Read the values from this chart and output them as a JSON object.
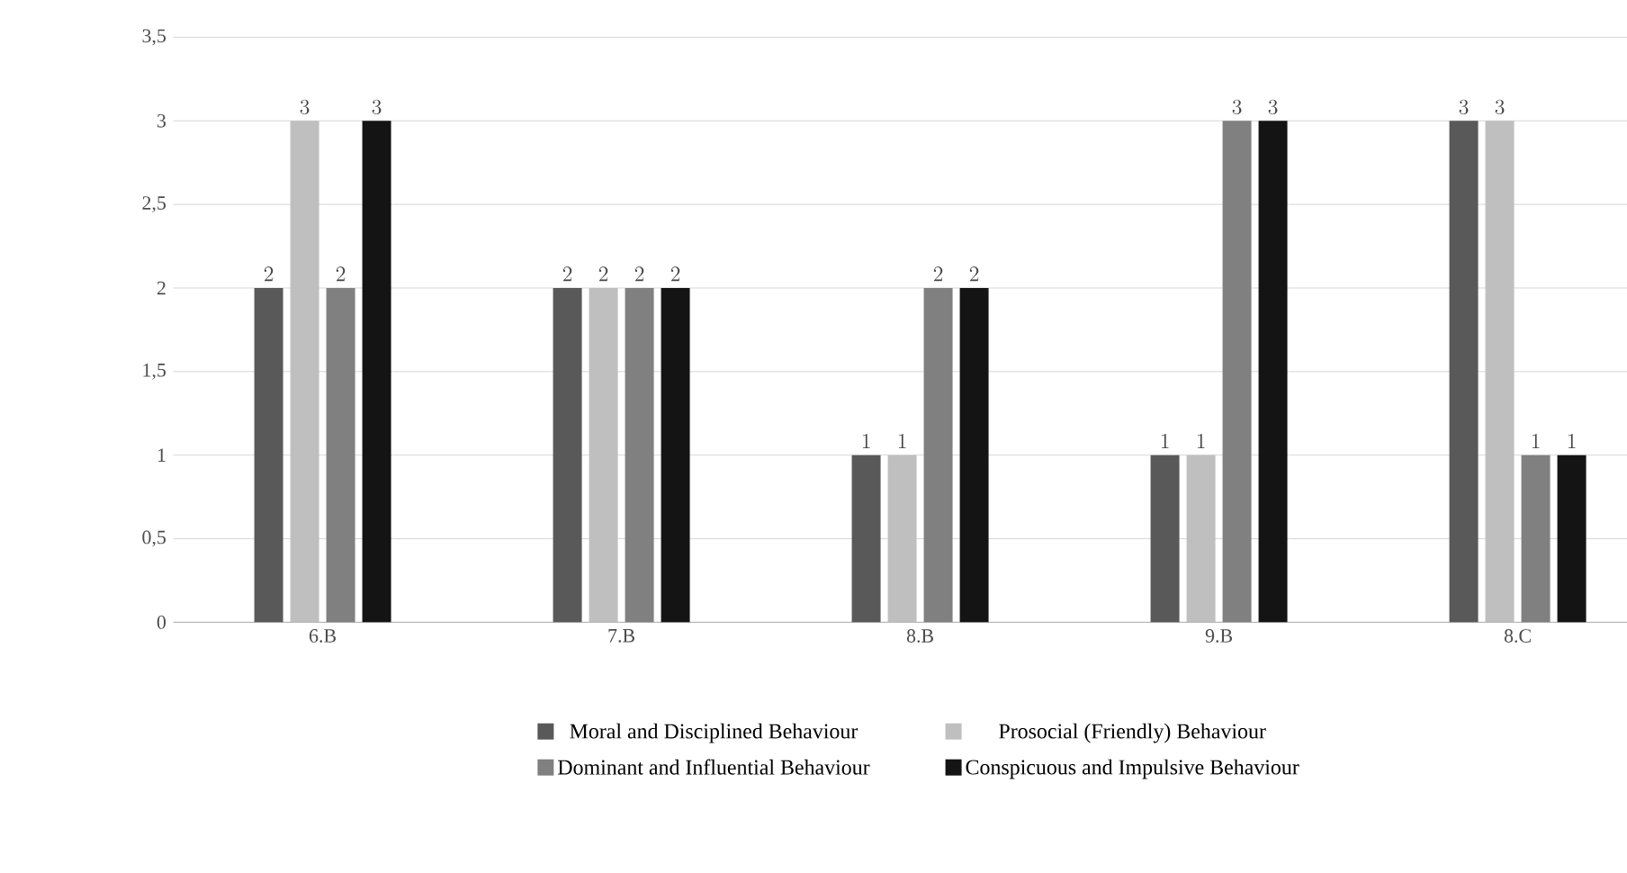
{
  "chart_data": {
    "type": "bar",
    "categories": [
      "6.B",
      "7.B",
      "8.B",
      "9.B",
      "8.C"
    ],
    "series": [
      {
        "name": "Moral and Disciplined Behaviour",
        "color": "#595959",
        "values": [
          2,
          2,
          1,
          1,
          3
        ]
      },
      {
        "name": "Prosocial (Friendly) Behaviour",
        "color": "#bfbfbf",
        "values": [
          3,
          2,
          1,
          1,
          3
        ]
      },
      {
        "name": "Dominant and Influential Behaviour",
        "color": "#808080",
        "values": [
          2,
          2,
          2,
          3,
          1
        ]
      },
      {
        "name": "Conspicuous and Impulsive Behaviour",
        "color": "#141414",
        "values": [
          3,
          2,
          2,
          3,
          1
        ]
      }
    ],
    "ylim": [
      0,
      3.5
    ],
    "yticks": [
      0,
      {
        "value": 0.5,
        "label": "0,5"
      },
      1,
      {
        "value": 1.5,
        "label": "1,5"
      },
      2,
      {
        "value": 2.5,
        "label": "2,5"
      },
      3,
      {
        "value": 3.5,
        "label": "3,5"
      }
    ],
    "grid": "y",
    "data_labels": true,
    "legend": "bottom"
  }
}
